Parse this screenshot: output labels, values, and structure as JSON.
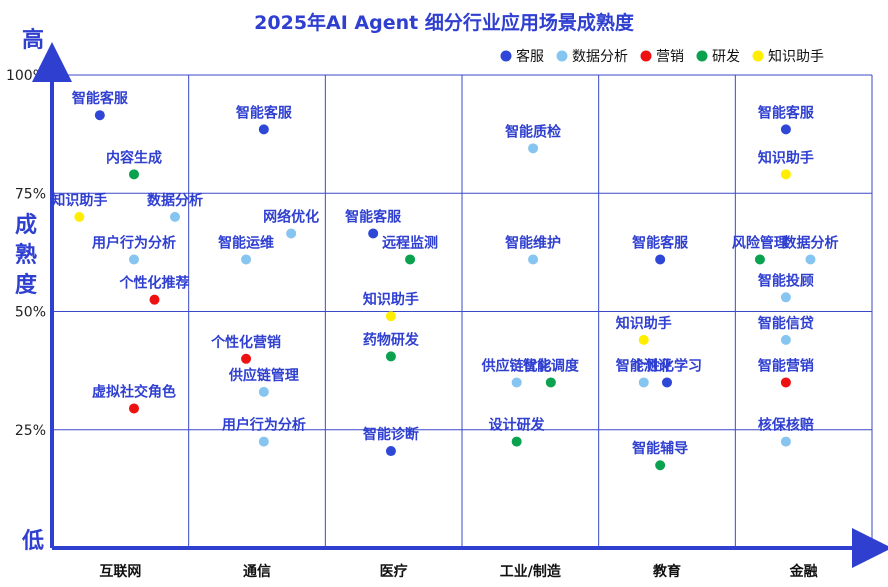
{
  "chart_data": {
    "type": "scatter",
    "title": "2025年AI Agent 细分行业应用场景成熟度",
    "y_axis": {
      "label": "成熟度",
      "top_label": "高",
      "bottom_label": "低",
      "ticks": [
        "25%",
        "50%",
        "75%",
        "100%"
      ],
      "ylim": [
        0,
        100
      ]
    },
    "categories": [
      "互联网",
      "通信",
      "医疗",
      "工业/制造",
      "教育",
      "金融"
    ],
    "legend_position": "top-right",
    "series": [
      {
        "name": "客服",
        "color": "#2f47d6"
      },
      {
        "name": "数据分析",
        "color": "#86c5f0"
      },
      {
        "name": "营销",
        "color": "#ee1111"
      },
      {
        "name": "研发",
        "color": "#0aa14f"
      },
      {
        "name": "知识助手",
        "color": "#ffee00"
      }
    ],
    "points": [
      {
        "cat": 0,
        "x": 0.35,
        "y": 91.5,
        "series": "客服",
        "label": "智能客服"
      },
      {
        "cat": 0,
        "x": 0.6,
        "y": 79.0,
        "series": "研发",
        "label": "内容生成"
      },
      {
        "cat": 0,
        "x": 0.2,
        "y": 70.0,
        "series": "知识助手",
        "label": "知识助手"
      },
      {
        "cat": 0,
        "x": 0.9,
        "y": 70.0,
        "series": "数据分析",
        "label": "数据分析"
      },
      {
        "cat": 0,
        "x": 0.6,
        "y": 61.0,
        "series": "数据分析",
        "label": "用户行为分析"
      },
      {
        "cat": 0,
        "x": 0.75,
        "y": 52.5,
        "series": "营销",
        "label": "个性化推荐"
      },
      {
        "cat": 0,
        "x": 0.6,
        "y": 29.5,
        "series": "营销",
        "label": "虚拟社交角色"
      },
      {
        "cat": 1,
        "x": 0.55,
        "y": 88.5,
        "series": "客服",
        "label": "智能客服"
      },
      {
        "cat": 1,
        "x": 0.75,
        "y": 66.5,
        "series": "数据分析",
        "label": "网络优化"
      },
      {
        "cat": 1,
        "x": 0.42,
        "y": 61.0,
        "series": "数据分析",
        "label": "智能运维"
      },
      {
        "cat": 1,
        "x": 0.42,
        "y": 40.0,
        "series": "营销",
        "label": "个性化营销"
      },
      {
        "cat": 1,
        "x": 0.55,
        "y": 33.0,
        "series": "数据分析",
        "label": "供应链管理"
      },
      {
        "cat": 1,
        "x": 0.55,
        "y": 22.5,
        "series": "数据分析",
        "label": "用户行为分析"
      },
      {
        "cat": 2,
        "x": 0.35,
        "y": 66.5,
        "series": "客服",
        "label": "智能客服"
      },
      {
        "cat": 2,
        "x": 0.62,
        "y": 61.0,
        "series": "研发",
        "label": "远程监测"
      },
      {
        "cat": 2,
        "x": 0.48,
        "y": 49.0,
        "series": "知识助手",
        "label": "知识助手"
      },
      {
        "cat": 2,
        "x": 0.48,
        "y": 40.5,
        "series": "研发",
        "label": "药物研发"
      },
      {
        "cat": 2,
        "x": 0.48,
        "y": 20.5,
        "series": "客服",
        "label": "智能诊断"
      },
      {
        "cat": 3,
        "x": 0.52,
        "y": 84.5,
        "series": "数据分析",
        "label": "智能质检"
      },
      {
        "cat": 3,
        "x": 0.52,
        "y": 61.0,
        "series": "数据分析",
        "label": "智能维护"
      },
      {
        "cat": 3,
        "x": 0.4,
        "y": 35.0,
        "series": "数据分析",
        "label": "供应链优化"
      },
      {
        "cat": 3,
        "x": 0.65,
        "y": 35.0,
        "series": "研发",
        "label": "智能调度"
      },
      {
        "cat": 3,
        "x": 0.4,
        "y": 22.5,
        "series": "研发",
        "label": "设计研发"
      },
      {
        "cat": 4,
        "x": 0.45,
        "y": 61.0,
        "series": "客服",
        "label": "智能客服"
      },
      {
        "cat": 4,
        "x": 0.33,
        "y": 44.0,
        "series": "知识助手",
        "label": "知识助手"
      },
      {
        "cat": 4,
        "x": 0.5,
        "y": 35.0,
        "series": "客服",
        "label": "个性化学习"
      },
      {
        "cat": 4,
        "x": 0.33,
        "y": 35.0,
        "series": "数据分析",
        "label": "智能测评"
      },
      {
        "cat": 4,
        "x": 0.45,
        "y": 17.5,
        "series": "研发",
        "label": "智能辅导"
      },
      {
        "cat": 5,
        "x": 0.37,
        "y": 88.5,
        "series": "客服",
        "label": "智能客服"
      },
      {
        "cat": 5,
        "x": 0.37,
        "y": 79.0,
        "series": "知识助手",
        "label": "知识助手"
      },
      {
        "cat": 5,
        "x": 0.18,
        "y": 61.0,
        "series": "研发",
        "label": "风险管理"
      },
      {
        "cat": 5,
        "x": 0.55,
        "y": 61.0,
        "series": "数据分析",
        "label": "数据分析"
      },
      {
        "cat": 5,
        "x": 0.37,
        "y": 53.0,
        "series": "数据分析",
        "label": "智能投顾"
      },
      {
        "cat": 5,
        "x": 0.37,
        "y": 44.0,
        "series": "数据分析",
        "label": "智能信贷"
      },
      {
        "cat": 5,
        "x": 0.37,
        "y": 35.0,
        "series": "营销",
        "label": "智能营销"
      },
      {
        "cat": 5,
        "x": 0.37,
        "y": 22.5,
        "series": "数据分析",
        "label": "核保核赔"
      }
    ]
  }
}
